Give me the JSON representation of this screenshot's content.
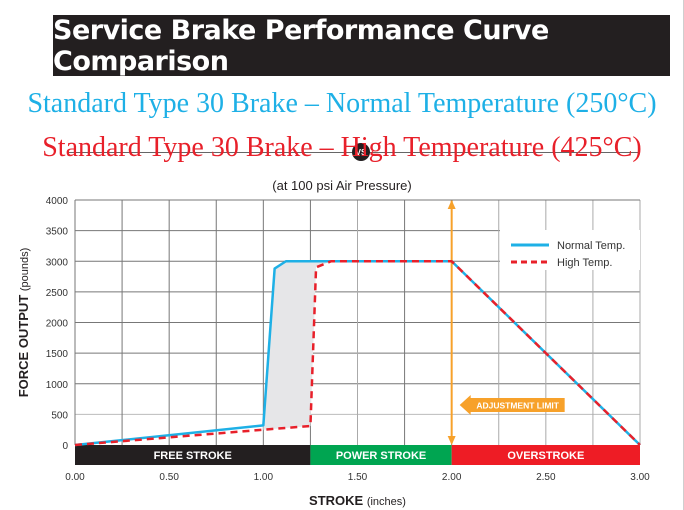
{
  "header": {
    "title": "Service Brake Performance Curve Comparison",
    "subtitle_normal": "Standard Type 30 Brake – Normal Temperature (250°C)",
    "vs_badge": "VS",
    "subtitle_high": "Standard Type 30 Brake – High Temperature (425°C)",
    "note": "(at 100 psi Air Pressure)"
  },
  "colors": {
    "normal": "#1eb0e6",
    "high": "#e8202a",
    "free_stroke": "#231f20",
    "power_stroke": "#00a551",
    "overstroke": "#ee1c25",
    "adjustment": "#f7a12a",
    "fill": "#e6e6e8",
    "title_bg": "#231f20"
  },
  "chart_data": {
    "type": "line",
    "title": "Service Brake Performance Curve Comparison",
    "xlabel_bold": "STROKE",
    "xlabel_unit": "(inches)",
    "ylabel_bold": "FORCE OUTPUT",
    "ylabel_unit": "(pounds)",
    "xlim": [
      0,
      3.0
    ],
    "ylim": [
      0,
      4000
    ],
    "xticks": [
      0,
      0.5,
      1.0,
      1.5,
      2.0,
      2.5,
      3.0
    ],
    "xtick_labels": [
      "0.00",
      "0.50",
      "1.00",
      "1.50",
      "2.00",
      "2.50",
      "3.00"
    ],
    "yticks": [
      0,
      500,
      1000,
      1500,
      2000,
      2500,
      3000,
      3500,
      4000
    ],
    "ytick_labels": [
      "0",
      "500",
      "1000",
      "1500",
      "2000",
      "2500",
      "3000",
      "3500",
      "4000"
    ],
    "x_minor_grid_step": 0.25,
    "grid": true,
    "legend_position": "top-right",
    "series": [
      {
        "name": "Normal Temp.",
        "style": "solid",
        "x": [
          0,
          1.0,
          1.06,
          1.12,
          2.0,
          3.0
        ],
        "y": [
          0,
          320,
          2880,
          3000,
          3000,
          0
        ]
      },
      {
        "name": "High Temp.",
        "style": "dashed",
        "x": [
          0,
          1.0,
          1.25,
          1.28,
          1.36,
          2.0,
          3.0
        ],
        "y": [
          0,
          250,
          310,
          2900,
          3000,
          3000,
          0
        ]
      }
    ],
    "stroke_bands": [
      {
        "label": "FREE STROKE",
        "from": 0,
        "to": 1.25
      },
      {
        "label": "POWER STROKE",
        "from": 1.25,
        "to": 2.0
      },
      {
        "label": "OVERSTROKE",
        "from": 2.0,
        "to": 3.0
      }
    ],
    "annotations": [
      {
        "label": "ADJUSTMENT LIMIT",
        "x": 2.0
      }
    ]
  }
}
